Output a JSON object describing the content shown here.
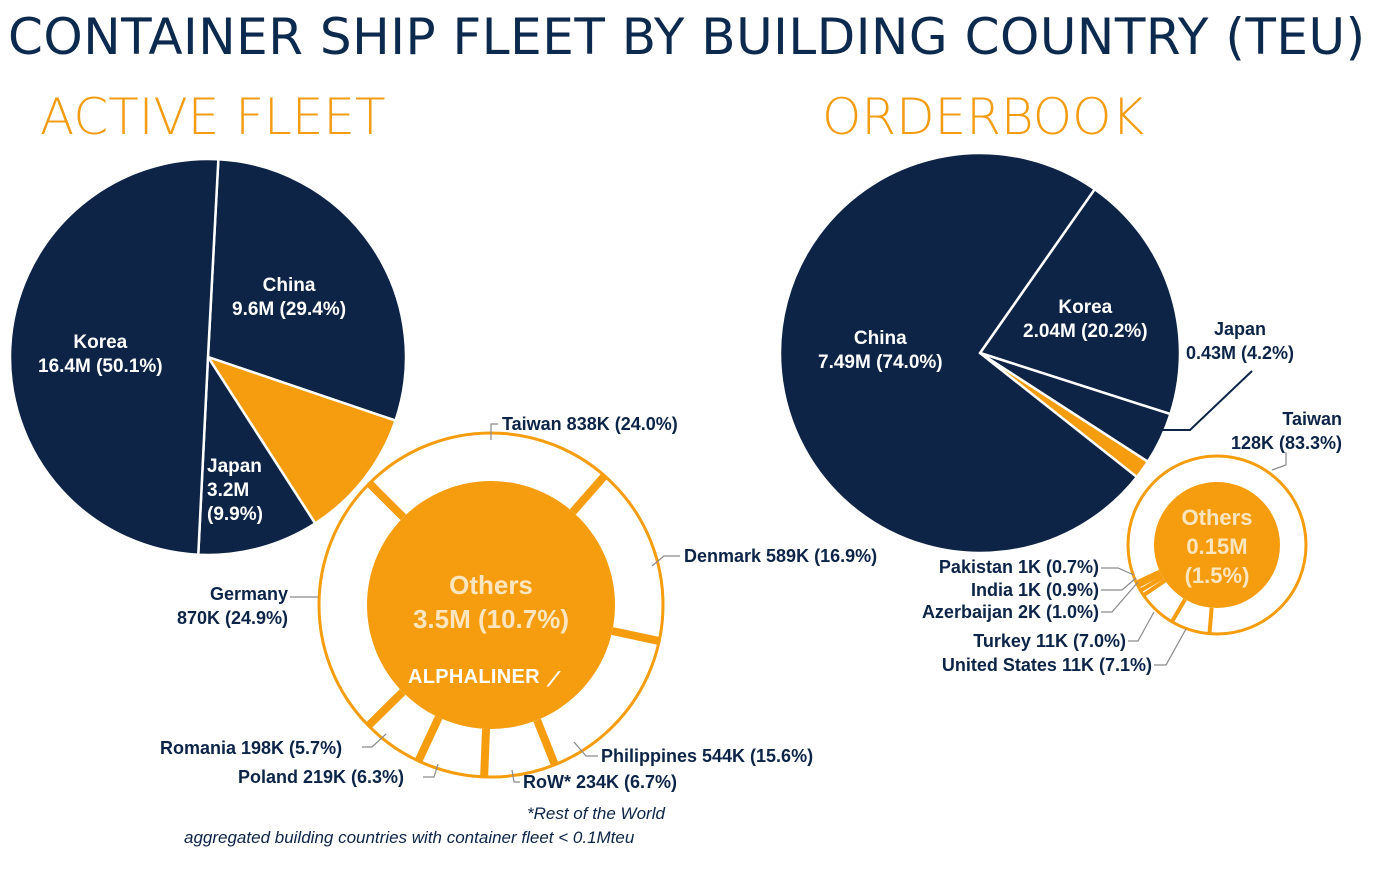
{
  "title": "CONTAINER SHIP FLEET BY BUILDING COUNTRY (TEU)",
  "colors": {
    "navy": "#0d2447",
    "orange": "#f59d0e",
    "title": "#0c2a4d"
  },
  "logo": "ALPHALINER",
  "footnote": {
    "line1": "*Rest of the World",
    "line2": "aggregated building countries with container fleet < 0.1Mteu"
  },
  "chart_data": [
    {
      "type": "pie",
      "title": "ACTIVE FLEET",
      "slices": [
        {
          "name": "China",
          "value_label": "9.6M (29.4%)",
          "value": 9.6,
          "percent": 29.4,
          "color": "#0d2447"
        },
        {
          "name": "Others",
          "value_label": "3.5M (10.7%)",
          "value": 3.5,
          "percent": 10.7,
          "color": "#f59d0e"
        },
        {
          "name": "Japan",
          "value_label": "3.2M",
          "pct_label": "(9.9%)",
          "value": 3.2,
          "percent": 9.9,
          "color": "#0d2447"
        },
        {
          "name": "Korea",
          "value_label": "16.4M (50.1%)",
          "value": 16.4,
          "percent": 50.1,
          "color": "#0d2447"
        }
      ],
      "others_breakdown": [
        {
          "label": "Taiwan 838K (24.0%)",
          "value": 838,
          "percent": 24.0
        },
        {
          "label": "Denmark 589K (16.9%)",
          "value": 589,
          "percent": 16.9
        },
        {
          "label": "Philippines 544K (15.6%)",
          "value": 544,
          "percent": 15.6
        },
        {
          "label": "RoW* 234K (6.7%)",
          "value": 234,
          "percent": 6.7
        },
        {
          "label": "Poland 219K (6.3%)",
          "value": 219,
          "percent": 6.3
        },
        {
          "label": "Romania 198K (5.7%)",
          "value": 198,
          "percent": 5.7
        },
        {
          "label": "Germany",
          "label2": "870K (24.9%)",
          "value": 870,
          "percent": 24.9
        }
      ]
    },
    {
      "type": "pie",
      "title": "ORDERBOOK",
      "slices": [
        {
          "name": "Korea",
          "value_label": "2.04M (20.2%)",
          "value": 2.04,
          "percent": 20.2,
          "color": "#0d2447"
        },
        {
          "name": "Japan",
          "value_label": "0.43M (4.2%)",
          "value": 0.43,
          "percent": 4.2,
          "color": "#0d2447"
        },
        {
          "name": "Others",
          "value_label": "0.15M",
          "pct_label": "(1.5%)",
          "value": 0.15,
          "percent": 1.5,
          "color": "#f59d0e"
        },
        {
          "name": "China",
          "value_label": "7.49M (74.0%)",
          "value": 7.49,
          "percent": 74.0,
          "color": "#0d2447"
        }
      ],
      "others_breakdown": [
        {
          "label": "Taiwan",
          "label2": "128K (83.3%)",
          "value": 128,
          "percent": 83.3
        },
        {
          "label": "United States 11K (7.1%)",
          "value": 11,
          "percent": 7.1
        },
        {
          "label": "Turkey 11K (7.0%)",
          "value": 11,
          "percent": 7.0
        },
        {
          "label": "Azerbaijan 2K (1.0%)",
          "value": 2,
          "percent": 1.0
        },
        {
          "label": "India 1K (0.9%)",
          "value": 1,
          "percent": 0.9
        },
        {
          "label": "Pakistan 1K (0.7%)",
          "value": 1,
          "percent": 0.7
        }
      ]
    }
  ]
}
